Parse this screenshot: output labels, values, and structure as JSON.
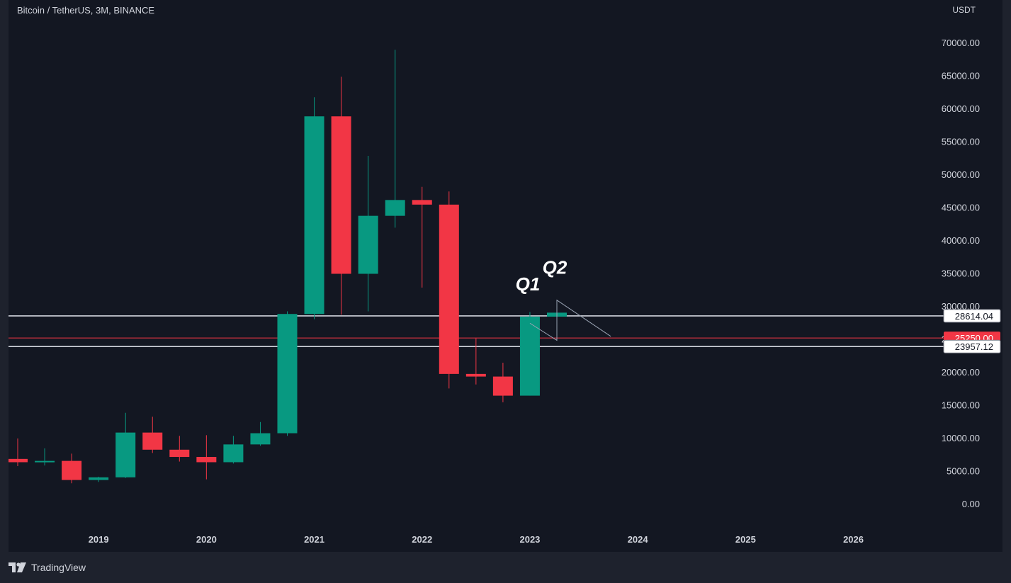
{
  "header": {
    "symbol_title": "Bitcoin / TetherUS, 3M, BINANCE",
    "axis_unit": "USDT"
  },
  "footer": {
    "brand": "TradingView"
  },
  "colors": {
    "background": "#131722",
    "up": "#089981",
    "down": "#f23645",
    "text": "#d1d4dc",
    "level_line": "#d1d4dc",
    "current_price": "#f23645"
  },
  "chart_data": {
    "type": "candlestick",
    "title": "Bitcoin / TetherUS, 3M, BINANCE",
    "ylabel": "USDT",
    "ylim": [
      -2000,
      75000
    ],
    "y_ticks": [
      "0.00",
      "5000.00",
      "10000.00",
      "15000.00",
      "20000.00",
      "25000.00",
      "30000.00",
      "35000.00",
      "40000.00",
      "45000.00",
      "50000.00",
      "55000.00",
      "60000.00",
      "65000.00",
      "70000.00"
    ],
    "x_ticks": [
      "2019",
      "2020",
      "2021",
      "2022",
      "2023",
      "2024",
      "2025",
      "2026"
    ],
    "candles": [
      {
        "period": "2018 Q2",
        "open": 6900,
        "high": 10000,
        "low": 5800,
        "close": 6400
      },
      {
        "period": "2018 Q3",
        "open": 6400,
        "high": 8500,
        "low": 5900,
        "close": 6600
      },
      {
        "period": "2018 Q4",
        "open": 6600,
        "high": 7700,
        "low": 3200,
        "close": 3700
      },
      {
        "period": "2019 Q1",
        "open": 3700,
        "high": 4200,
        "low": 3400,
        "close": 4100
      },
      {
        "period": "2019 Q2",
        "open": 4100,
        "high": 13900,
        "low": 4000,
        "close": 10900
      },
      {
        "period": "2019 Q3",
        "open": 10900,
        "high": 13300,
        "low": 7800,
        "close": 8300
      },
      {
        "period": "2019 Q4",
        "open": 8300,
        "high": 10400,
        "low": 6500,
        "close": 7200
      },
      {
        "period": "2020 Q1",
        "open": 7200,
        "high": 10500,
        "low": 3800,
        "close": 6400
      },
      {
        "period": "2020 Q2",
        "open": 6400,
        "high": 10400,
        "low": 6200,
        "close": 9100
      },
      {
        "period": "2020 Q3",
        "open": 9100,
        "high": 12500,
        "low": 8900,
        "close": 10800
      },
      {
        "period": "2020 Q4",
        "open": 10800,
        "high": 29300,
        "low": 10400,
        "close": 28900
      },
      {
        "period": "2021 Q1",
        "open": 28900,
        "high": 61800,
        "low": 28100,
        "close": 58900
      },
      {
        "period": "2021 Q2",
        "open": 58900,
        "high": 64900,
        "low": 28800,
        "close": 35000
      },
      {
        "period": "2021 Q3",
        "open": 35000,
        "high": 52900,
        "low": 29300,
        "close": 43800
      },
      {
        "period": "2021 Q4",
        "open": 43800,
        "high": 69000,
        "low": 42000,
        "close": 46200
      },
      {
        "period": "2022 Q1",
        "open": 46200,
        "high": 48200,
        "low": 32900,
        "close": 45500
      },
      {
        "period": "2022 Q2",
        "open": 45500,
        "high": 47500,
        "low": 17600,
        "close": 19800
      },
      {
        "period": "2022 Q3",
        "open": 19800,
        "high": 25200,
        "low": 18200,
        "close": 19400
      },
      {
        "period": "2022 Q4",
        "open": 19400,
        "high": 21500,
        "low": 15500,
        "close": 16500
      },
      {
        "period": "2023 Q1",
        "open": 16500,
        "high": 29200,
        "low": 16500,
        "close": 28500
      },
      {
        "period": "2023 Q2",
        "open": 28500,
        "high": 31000,
        "low": 24900,
        "close": 29100
      }
    ],
    "horizontal_levels": [
      {
        "price": 28614.04,
        "label": "28614.04"
      },
      {
        "price": 23957.12,
        "label": "23957.12"
      }
    ],
    "current_price": {
      "price": 25250.0,
      "label": "25250.00"
    },
    "annotations": [
      {
        "text": "Q1",
        "candle": "2023 Q1",
        "price": 32500
      },
      {
        "text": "Q2",
        "candle": "2023 Q2",
        "price": 35000
      }
    ],
    "projection_path": [
      {
        "candle": "2023 Q1",
        "price": 27500
      },
      {
        "candle": "2023 Q2",
        "price": 24900
      },
      {
        "candle": "2023 Q2",
        "price": 31000
      },
      {
        "candle": "2023 Q4",
        "price": 25500
      }
    ]
  }
}
